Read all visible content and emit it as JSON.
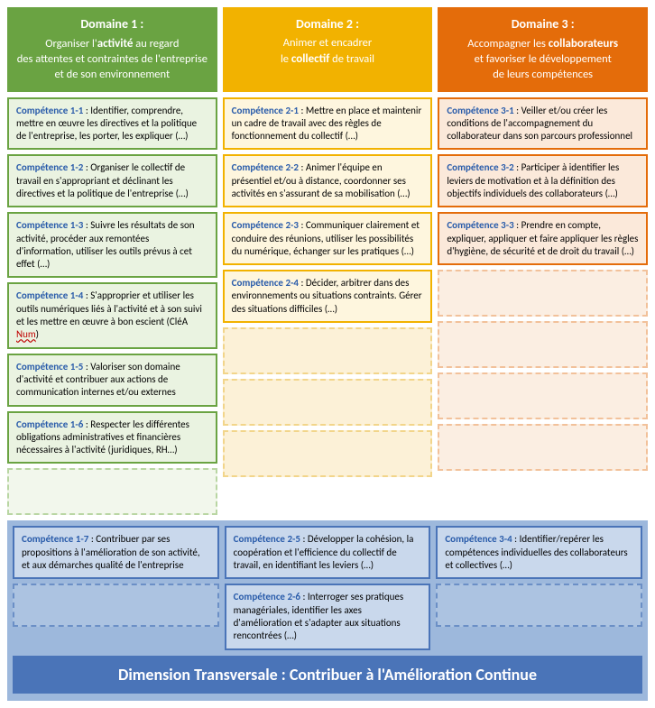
{
  "colors": {
    "d1_header": "#6aa342",
    "d1_cell_bg": "#eaf3e1",
    "d1_cell_border": "#6aa342",
    "d1_ph_bg": "#f2f7ec",
    "d1_ph_border": "#b9d6a3",
    "d2_header": "#f2b200",
    "d2_cell_bg": "#fef6de",
    "d2_cell_border": "#f2b200",
    "d2_ph_bg": "#fcf1d7",
    "d2_ph_border": "#f2d58a",
    "d3_header": "#e46c0a",
    "d3_cell_bg": "#fbe9da",
    "d3_cell_border": "#e46c0a",
    "d3_ph_bg": "#fbeee2",
    "d3_ph_border": "#f2c19a",
    "trans_bg": "#9db8dc",
    "trans_bar": "#4a74b8",
    "trans_border": "#4a74b8"
  },
  "rows_main": 7,
  "domains": [
    {
      "title": "Domaine 1 :",
      "sub_pre": "Organiser l'",
      "sub_strong": "activité",
      "sub_post": " au regard",
      "sub_line2": "des attentes et contraintes de l'entreprise",
      "sub_line3": "et de son environnement",
      "items": [
        {
          "label": "Compétence 1-1",
          "text": " : Identifier, comprendre, mettre en œuvre les directives et la politique de l'entreprise, les porter, les expliquer (…)"
        },
        {
          "label": "Compétence 1-2",
          "text": " : Organiser le collectif de travail en s'appropriant et déclinant les directives et la politique de l'entreprise (…)"
        },
        {
          "label": "Compétence 1-3",
          "text": " : Suivre les résultats de son activité, procéder aux remontées d'information, utiliser les outils prévus à cet effet (…)"
        },
        {
          "label": "Compétence 1-4",
          "text_pre": " : S'approprier et utiliser les outils numériques liés à l'activité et à son suivi et les mettre en œuvre à bon escient (CléA ",
          "red": "Num",
          "text_post": ")"
        },
        {
          "label": "Compétence 1-5",
          "text": " : Valoriser son domaine d'activité et contribuer aux actions de communication internes et/ou externes"
        },
        {
          "label": "Compétence 1-6",
          "text": " : Respecter les différentes obligations administratives et financières nécessaires à l'activité (juridiques, RH…)"
        },
        null
      ]
    },
    {
      "title": "Domaine 2 :",
      "sub_pre": "Animer et encadrer",
      "sub_strong": "collectif",
      "sub_line2_pre": "le ",
      "sub_line2_post": " de travail",
      "items": [
        {
          "label": "Compétence 2-1",
          "text": " : Mettre en place et maintenir un cadre de travail avec des règles de fonctionnement du collectif (…)"
        },
        {
          "label": "Compétence 2-2",
          "text": " : Animer l'équipe en présentiel et/ou à distance, coordonner ses activités en s'assurant de sa mobilisation (…)"
        },
        {
          "label": "Compétence 2-3",
          "text": " : Communiquer clairement et conduire des réunions, utiliser les possibilités du numérique, échanger sur les pratiques (…)"
        },
        {
          "label": "Compétence 2-4",
          "text": " : Décider, arbitrer dans des environnements ou situations contraints. Gérer des situations difficiles (…)"
        },
        null,
        null,
        null
      ]
    },
    {
      "title": "Domaine 3 :",
      "sub_pre": "Accompagner les ",
      "sub_strong": "collaborateurs",
      "sub_post": "",
      "sub_line2": "et favoriser le développement",
      "sub_line3": "de leurs compétences",
      "items": [
        {
          "label": "Compétence 3-1",
          "text": " : Veiller et/ou créer les conditions de l'accompagnement du collaborateur dans son parcours professionnel"
        },
        {
          "label": "Compétence 3-2",
          "text": " : Participer à identifier les leviers de motivation et à la définition des objectifs individuels des collaborateurs (…)"
        },
        {
          "label": "Compétence 3-3",
          "text": " : Prendre en compte, expliquer, appliquer et faire appliquer les règles d'hygiène, de sécurité et de droit du travail (…)"
        },
        null,
        null,
        null,
        null
      ]
    }
  ],
  "transversal": {
    "title": "Dimension Transversale : Contribuer à l'Amélioration Continue",
    "rows": 2,
    "cols": [
      [
        {
          "label": "Compétence 1-7",
          "text": " : Contribuer par ses propositions à l'amélioration de son activité, et aux démarches qualité de l'entreprise"
        },
        null
      ],
      [
        {
          "label": "Compétence 2-5",
          "text": " : Développer la cohésion, la coopération et l'efficience du collectif de travail, en identifiant les leviers (…)"
        },
        {
          "label": "Compétence 2-6",
          "text": " : Interroger ses pratiques managériales, identifier les axes d'amélioration et s'adapter aux situations rencontrées (…)"
        }
      ],
      [
        {
          "label": "Compétence 3-4",
          "text": " : Identifier/repérer les compétences individuelles des collaborateurs et collectives (…)"
        },
        null
      ]
    ]
  }
}
